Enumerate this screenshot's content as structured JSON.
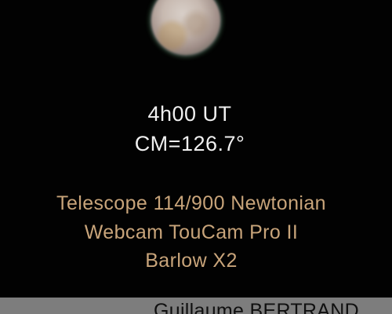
{
  "observation": {
    "time": "4h00 UT",
    "central_meridian": "CM=126.7°"
  },
  "equipment": {
    "telescope": "Telescope 114/900 Newtonian",
    "camera": "Webcam TouCam Pro II",
    "barlow": "Barlow X2"
  },
  "credit": {
    "author": "Guillaume BERTRAND"
  },
  "colors": {
    "background": "#020202",
    "info_text": "#f0f0f0",
    "equipment_text": "#c8a47a",
    "credit_bar": "#7d7d7d"
  }
}
